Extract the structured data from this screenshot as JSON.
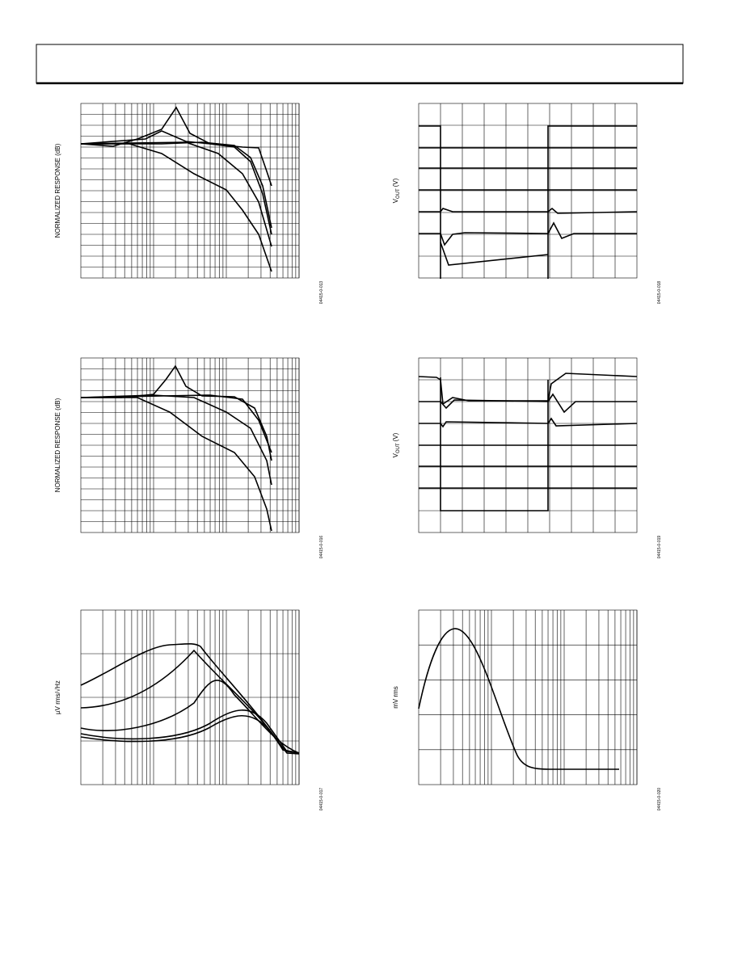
{
  "panels": [
    {
      "y_label": "NORMALIZED RESPONSE (dB)",
      "figure_id": "04415-0-013"
    },
    {
      "y_label": {
        "main": "V",
        "sub": "OUT",
        "unit": "(V)"
      },
      "figure_id": "04415-0-018"
    },
    {
      "y_label": "NORMALIZED RESPONSE (dB)",
      "figure_id": "04415-0-016"
    },
    {
      "y_label": {
        "main": "V",
        "sub": "OUT",
        "unit": "(V)"
      },
      "figure_id": "04415-0-019"
    },
    {
      "y_label": "µV rms/√Hz",
      "figure_id": "04415-0-017"
    },
    {
      "y_label": "mV rms",
      "figure_id": "04415-0-020"
    }
  ]
}
